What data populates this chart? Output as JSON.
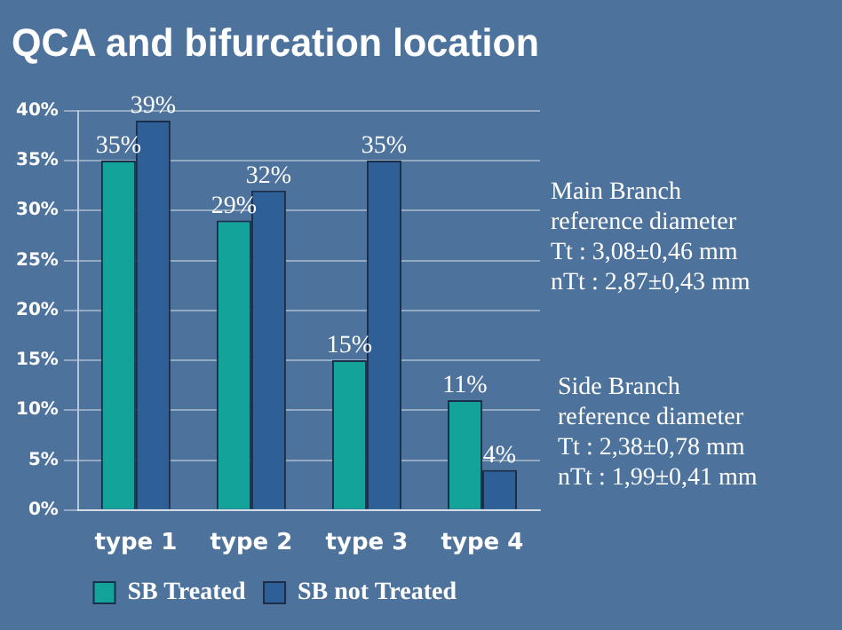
{
  "chart_data": {
    "type": "bar",
    "title": "QCA and bifurcation location",
    "categories": [
      "type 1",
      "type 2",
      "type 3",
      "type 4"
    ],
    "series": [
      {
        "name": "SB Treated",
        "color": "#13a39a",
        "values": [
          35,
          29,
          15,
          11
        ],
        "value_labels": [
          "35%",
          "29%",
          "15%",
          "11%"
        ]
      },
      {
        "name": "SB not Treated",
        "color": "#2e5f96",
        "values": [
          39,
          32,
          35,
          4
        ],
        "value_labels": [
          "39%",
          "32%",
          "35%",
          "4%"
        ]
      }
    ],
    "ylim": [
      0,
      40
    ],
    "yticks": [
      {
        "value": 0,
        "label": "0%"
      },
      {
        "value": 5,
        "label": "5%"
      },
      {
        "value": 10,
        "label": "10%"
      },
      {
        "value": 15,
        "label": "15%"
      },
      {
        "value": 20,
        "label": "20%"
      },
      {
        "value": 25,
        "label": "25%"
      },
      {
        "value": 30,
        "label": "30%"
      },
      {
        "value": 35,
        "label": "35%"
      },
      {
        "value": 40,
        "label": "40%"
      }
    ],
    "grid": "y",
    "legend": "bottom",
    "annotations": [
      "Main Branch\nreference diameter\nTt : 3,08±0,46 mm\nnTt : 2,87±0,43 mm",
      "Side Branch\nreference diameter\nTt : 2,38±0,78 mm\nnTt : 1,99±0,41 mm"
    ]
  }
}
